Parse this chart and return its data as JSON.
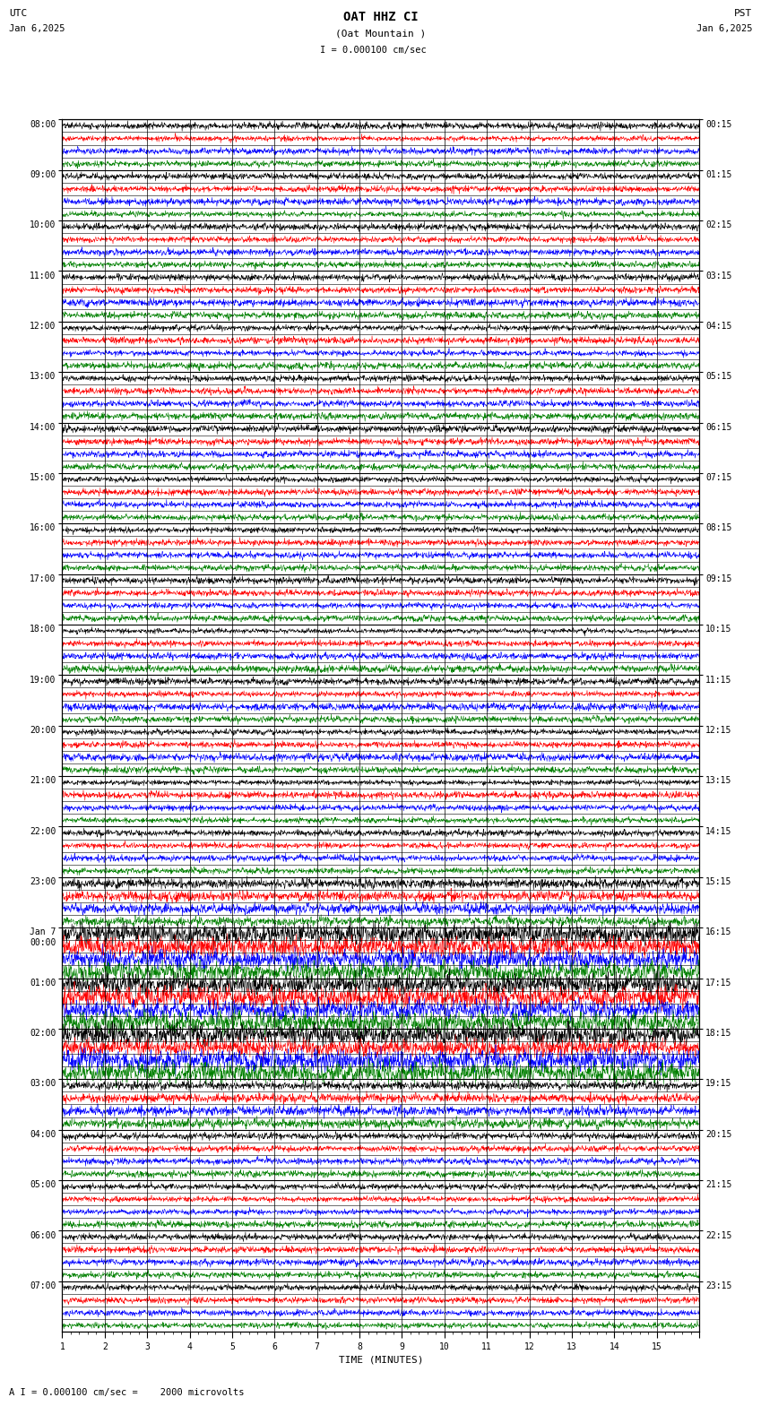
{
  "title_line1": "OAT HHZ CI",
  "title_line2": "(Oat Mountain )",
  "scale_label": "I = 0.000100 cm/sec",
  "utc_label": "UTC",
  "pst_label": "PST",
  "date_left": "Jan 6,2025",
  "date_right": "Jan 6,2025",
  "footer_label": "A I = 0.000100 cm/sec =    2000 microvolts",
  "xlabel": "TIME (MINUTES)",
  "left_times": [
    "08:00",
    "09:00",
    "10:00",
    "11:00",
    "12:00",
    "13:00",
    "14:00",
    "15:00",
    "16:00",
    "17:00",
    "18:00",
    "19:00",
    "20:00",
    "21:00",
    "22:00",
    "23:00",
    "Jan 7\n00:00",
    "01:00",
    "02:00",
    "03:00",
    "04:00",
    "05:00",
    "06:00",
    "07:00"
  ],
  "right_times": [
    "00:15",
    "01:15",
    "02:15",
    "03:15",
    "04:15",
    "05:15",
    "06:15",
    "07:15",
    "08:15",
    "09:15",
    "10:15",
    "11:15",
    "12:15",
    "13:15",
    "14:15",
    "15:15",
    "16:15",
    "17:15",
    "18:15",
    "19:15",
    "20:15",
    "21:15",
    "22:15",
    "23:15"
  ],
  "n_hours": 24,
  "n_subrows": 4,
  "n_pts": 2000,
  "colors": [
    "black",
    "red",
    "blue",
    "green"
  ],
  "bg_color": "white",
  "fig_width": 8.5,
  "fig_height": 15.84,
  "dpi": 100,
  "font_size_title": 10,
  "font_size_labels": 8,
  "font_size_ticks": 7,
  "font_family": "monospace",
  "event_rows": [
    16,
    17,
    18
  ],
  "event_amp_boost": 3.0,
  "near_event_rows": [
    15,
    19
  ],
  "near_event_boost": 1.5,
  "amp_scale": 0.42,
  "lw": 0.4
}
